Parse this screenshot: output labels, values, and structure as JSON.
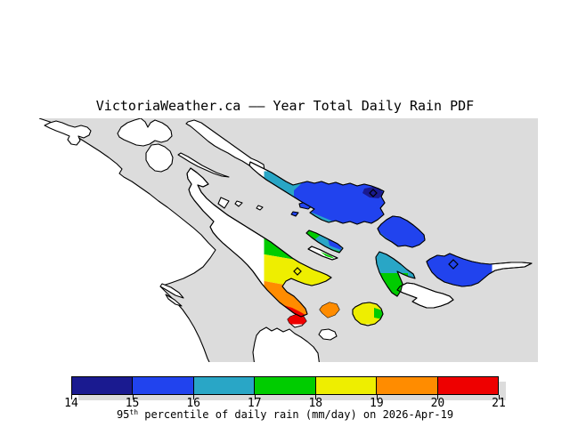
{
  "title": "VictoriaWeather.ca —— Year Total Daily Rain PDF",
  "map": {
    "description_colors": {
      "sea": "#dcdcdc",
      "no_data_land": "#ffffff",
      "coastline": "#000000"
    },
    "station_marker": "diamond-outline"
  },
  "palette": {
    "sea": "#dcdcdc",
    "land": "#ffffff",
    "outline": "#000000",
    "c14": "#1a1a90",
    "c15": "#2143ee",
    "c16": "#29a6c6",
    "c17": "#00cc00",
    "c18": "#eeee00",
    "c19": "#ff8c00",
    "c20": "#ee0000"
  },
  "colorbar": {
    "ticks": [
      "14",
      "15",
      "16",
      "17",
      "18",
      "19",
      "20",
      "21"
    ],
    "segment_colors": [
      "#1a1a90",
      "#2143ee",
      "#29a6c6",
      "#00cc00",
      "#eeee00",
      "#ff8c00",
      "#ee0000"
    ],
    "caption": {
      "prefix": "95",
      "sup": "th",
      "rest": " percentile of daily rain (mm/day) on 2026-Apr-19"
    }
  },
  "chart_data": {
    "type": "colorbar-map",
    "title": "VictoriaWeather.ca —— Year Total Daily Rain PDF",
    "scale_ticks": [
      14,
      15,
      16,
      17,
      18,
      19,
      20,
      21
    ],
    "scale_colors": [
      "#1a1a90",
      "#2143ee",
      "#29a6c6",
      "#00cc00",
      "#eeee00",
      "#ff8c00",
      "#ee0000"
    ],
    "scale_label": "95th percentile of daily rain (mm/day) on 2026-Apr-19",
    "units": "mm/day",
    "date": "2026-Apr-19"
  }
}
